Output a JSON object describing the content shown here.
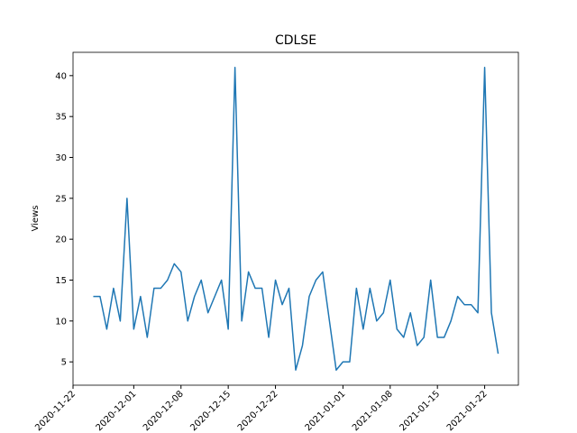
{
  "chart_data": {
    "type": "line",
    "title": "CDLSE",
    "y_label": "Views",
    "x": [
      "2020-11-25",
      "2020-11-26",
      "2020-11-27",
      "2020-11-28",
      "2020-11-29",
      "2020-11-30",
      "2020-12-01",
      "2020-12-02",
      "2020-12-03",
      "2020-12-04",
      "2020-12-05",
      "2020-12-06",
      "2020-12-07",
      "2020-12-08",
      "2020-12-09",
      "2020-12-10",
      "2020-12-11",
      "2020-12-12",
      "2020-12-13",
      "2020-12-14",
      "2020-12-15",
      "2020-12-16",
      "2020-12-17",
      "2020-12-18",
      "2020-12-19",
      "2020-12-20",
      "2020-12-21",
      "2020-12-22",
      "2020-12-23",
      "2020-12-24",
      "2020-12-25",
      "2020-12-26",
      "2020-12-27",
      "2020-12-28",
      "2020-12-29",
      "2020-12-30",
      "2020-12-31",
      "2021-01-01",
      "2021-01-02",
      "2021-01-03",
      "2021-01-04",
      "2021-01-05",
      "2021-01-06",
      "2021-01-07",
      "2021-01-08",
      "2021-01-09",
      "2021-01-10",
      "2021-01-11",
      "2021-01-12",
      "2021-01-13",
      "2021-01-14",
      "2021-01-15",
      "2021-01-16",
      "2021-01-17",
      "2021-01-18",
      "2021-01-19",
      "2021-01-20",
      "2021-01-21",
      "2021-01-22",
      "2021-01-23",
      "2021-01-24"
    ],
    "series": [
      {
        "name": "Views",
        "color": "#1f77b4",
        "values": [
          13,
          13,
          9,
          14,
          10,
          25,
          9,
          13,
          8,
          14,
          14,
          15,
          17,
          16,
          10,
          13,
          15,
          11,
          13,
          15,
          9,
          41,
          10,
          16,
          14,
          14,
          8,
          15,
          12,
          14,
          4,
          7,
          13,
          15,
          16,
          10,
          4,
          5,
          5,
          14,
          9,
          14,
          10,
          11,
          15,
          9,
          8,
          11,
          7,
          8,
          15,
          8,
          8,
          10,
          13,
          12,
          12,
          11,
          41,
          11,
          6
        ]
      }
    ],
    "xlim": [
      "2020-11-22",
      "2021-01-27"
    ],
    "xticks": [
      "2020-11-22",
      "2020-12-01",
      "2020-12-08",
      "2020-12-15",
      "2020-12-22",
      "2021-01-01",
      "2021-01-08",
      "2021-01-15",
      "2021-01-22"
    ],
    "ylim": [
      2.15,
      42.85
    ],
    "yticks": [
      5,
      10,
      15,
      20,
      25,
      30,
      35,
      40
    ],
    "grid": false
  }
}
